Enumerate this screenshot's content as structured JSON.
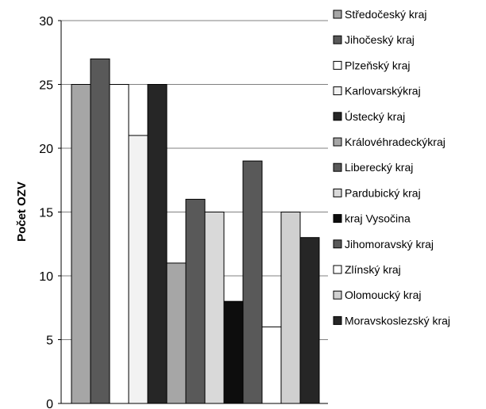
{
  "chart_data": {
    "type": "bar",
    "title": "",
    "xlabel": "",
    "ylabel": "Počet OZV",
    "ylim": [
      0,
      30
    ],
    "yticks": [
      0,
      5,
      10,
      15,
      20,
      25,
      30
    ],
    "grid": true,
    "legend_position": "right",
    "series": [
      {
        "name": "Středočeský kraj",
        "value": 25,
        "color": "#a6a6a6"
      },
      {
        "name": "Jihočeský kraj",
        "value": 27,
        "color": "#595959"
      },
      {
        "name": "Plzeňský kraj",
        "value": 25,
        "color": "#ffffff"
      },
      {
        "name": "Karlovarskýkraj",
        "value": 21,
        "color": "#f2f2f2"
      },
      {
        "name": "Ústecký kraj",
        "value": 25,
        "color": "#262626"
      },
      {
        "name": "Královéhradeckýkraj",
        "value": 11,
        "color": "#a6a6a6"
      },
      {
        "name": "Liberecký kraj",
        "value": 16,
        "color": "#595959"
      },
      {
        "name": "Pardubický kraj",
        "value": 15,
        "color": "#d9d9d9"
      },
      {
        "name": "kraj Vysočina",
        "value": 8,
        "color": "#0d0d0d"
      },
      {
        "name": "Jihomoravský kraj",
        "value": 19,
        "color": "#595959"
      },
      {
        "name": "Zlínský kraj",
        "value": 6,
        "color": "#ffffff"
      },
      {
        "name": "Olomoucký kraj",
        "value": 15,
        "color": "#d0d0d0"
      },
      {
        "name": "Moravskoslezský kraj",
        "value": 13,
        "color": "#262626"
      }
    ]
  }
}
